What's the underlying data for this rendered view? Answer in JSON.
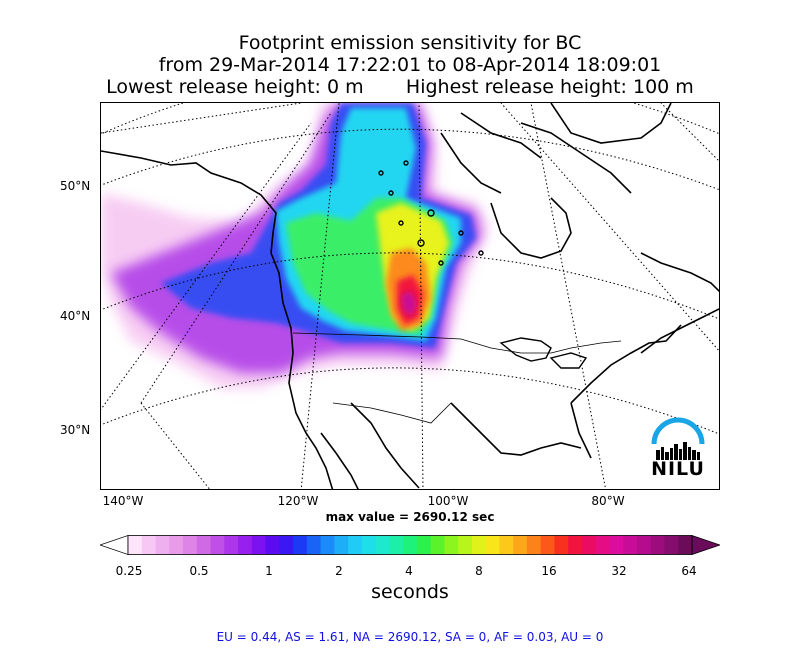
{
  "title": {
    "line1": "Footprint emission sensitivity for BC",
    "line2": "from 29-Mar-2014 17:22:01 to 08-Apr-2014 18:09:01",
    "line3_left": "Lowest release height: 0 m",
    "line3_right": "Highest release height: 100 m"
  },
  "map": {
    "lat_labels": [
      "50°N",
      "40°N",
      "30°N"
    ],
    "lon_labels": [
      "140°W",
      "120°W",
      "100°W",
      "80°W"
    ],
    "max_value_text": "max value = 2690.12 sec",
    "logo_text": "NILU"
  },
  "colorbar": {
    "ticks": [
      "0.25",
      "0.5",
      "1",
      "2",
      "4",
      "8",
      "16",
      "32",
      "64"
    ],
    "unit": "seconds",
    "colors": [
      "#fde4fb",
      "#f7c8f4",
      "#efb0ef",
      "#e79be9",
      "#dd84e6",
      "#cf6ae4",
      "#bf4fe6",
      "#ad35ea",
      "#9720ef",
      "#7d12f1",
      "#5c0cf1",
      "#3a17f3",
      "#1c3af5",
      "#1a63f7",
      "#1a8bf8",
      "#1eaef8",
      "#20ccf5",
      "#1edfe9",
      "#1ee9cf",
      "#1cf0a8",
      "#1ef27a",
      "#2cf04c",
      "#5af22a",
      "#8cf41e",
      "#b8f51c",
      "#dff21a",
      "#f8e61a",
      "#fcc81a",
      "#fca61a",
      "#fc821a",
      "#fb581a",
      "#f8301e",
      "#f2143e",
      "#ea0c62",
      "#e60c84",
      "#dc0c9c",
      "#c80c98",
      "#b40c8c",
      "#9c0c7c",
      "#840c6c",
      "#6a0c5a"
    ]
  },
  "regions_text": "EU = 0.44,  AS = 1.61,  NA = 2690.12,  SA = 0,  AF = 0.03,  AU = 0"
}
